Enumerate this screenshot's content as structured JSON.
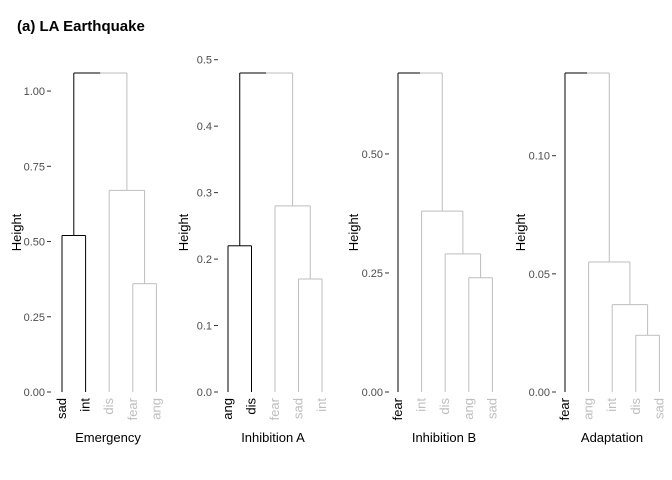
{
  "title": "(a) LA Earthquake",
  "colors": {
    "highlight": "#000000",
    "muted": "#bebebe",
    "tick_text": "#4d4d4d"
  },
  "chart_data": [
    {
      "type": "dendrogram",
      "xlabel": "Emergency",
      "ylabel": "Height",
      "ylim": [
        0,
        1.06
      ],
      "y_ticks": [
        0.0,
        0.25,
        0.5,
        0.75,
        1.0
      ],
      "y_tick_labels": [
        "0.00",
        "0.25",
        "0.50",
        "0.75",
        "1.00"
      ],
      "leaves": [
        {
          "label": "sad",
          "highlight": true
        },
        {
          "label": "int",
          "highlight": true
        },
        {
          "label": "dis",
          "highlight": false
        },
        {
          "label": "fear",
          "highlight": false
        },
        {
          "label": "ang",
          "highlight": false
        }
      ],
      "merges": [
        {
          "left": 3,
          "right": 4,
          "height": 0.36,
          "highlight": false
        },
        {
          "left": 2,
          "right": 5,
          "height": 0.67,
          "highlight": false
        },
        {
          "left": 0,
          "right": 1,
          "height": 0.52,
          "highlight": true
        },
        {
          "left": 7,
          "right": 6,
          "height": 1.06,
          "highlight": false
        }
      ]
    },
    {
      "type": "dendrogram",
      "xlabel": "Inhibition A",
      "ylabel": "Height",
      "ylim": [
        0,
        0.48
      ],
      "y_ticks": [
        0.0,
        0.1,
        0.2,
        0.3,
        0.4,
        0.5
      ],
      "y_tick_labels": [
        "0.0",
        "0.1",
        "0.2",
        "0.3",
        "0.4",
        "0.5"
      ],
      "leaves": [
        {
          "label": "ang",
          "highlight": true
        },
        {
          "label": "dis",
          "highlight": true
        },
        {
          "label": "fear",
          "highlight": false
        },
        {
          "label": "sad",
          "highlight": false
        },
        {
          "label": "int",
          "highlight": false
        }
      ],
      "merges": [
        {
          "left": 3,
          "right": 4,
          "height": 0.17,
          "highlight": false
        },
        {
          "left": 2,
          "right": 5,
          "height": 0.28,
          "highlight": false
        },
        {
          "left": 0,
          "right": 1,
          "height": 0.22,
          "highlight": true
        },
        {
          "left": 7,
          "right": 6,
          "height": 0.48,
          "highlight": false
        }
      ]
    },
    {
      "type": "dendrogram",
      "xlabel": "Inhibition B",
      "ylabel": "Height",
      "ylim": [
        0,
        0.67
      ],
      "y_ticks": [
        0.0,
        0.25,
        0.5
      ],
      "y_tick_labels": [
        "0.00",
        "0.25",
        "0.50"
      ],
      "leaves": [
        {
          "label": "fear",
          "highlight": true
        },
        {
          "label": "int",
          "highlight": false
        },
        {
          "label": "dis",
          "highlight": false
        },
        {
          "label": "ang",
          "highlight": false
        },
        {
          "label": "sad",
          "highlight": false
        }
      ],
      "merges": [
        {
          "left": 3,
          "right": 4,
          "height": 0.24,
          "highlight": false
        },
        {
          "left": 2,
          "right": 5,
          "height": 0.29,
          "highlight": false
        },
        {
          "left": 1,
          "right": 6,
          "height": 0.38,
          "highlight": false
        },
        {
          "left": 0,
          "right": 7,
          "height": 0.67,
          "highlight": false
        }
      ]
    },
    {
      "type": "dendrogram",
      "xlabel": "Adaptation",
      "ylabel": "Height",
      "ylim": [
        0,
        0.135
      ],
      "y_ticks": [
        0.0,
        0.05,
        0.1
      ],
      "y_tick_labels": [
        "0.00",
        "0.05",
        "0.10"
      ],
      "leaves": [
        {
          "label": "fear",
          "highlight": true
        },
        {
          "label": "ang",
          "highlight": false
        },
        {
          "label": "int",
          "highlight": false
        },
        {
          "label": "dis",
          "highlight": false
        },
        {
          "label": "sad",
          "highlight": false
        }
      ],
      "merges": [
        {
          "left": 3,
          "right": 4,
          "height": 0.024,
          "highlight": false
        },
        {
          "left": 2,
          "right": 5,
          "height": 0.037,
          "highlight": false
        },
        {
          "left": 1,
          "right": 6,
          "height": 0.055,
          "highlight": false
        },
        {
          "left": 0,
          "right": 7,
          "height": 0.135,
          "highlight": false
        }
      ]
    }
  ]
}
